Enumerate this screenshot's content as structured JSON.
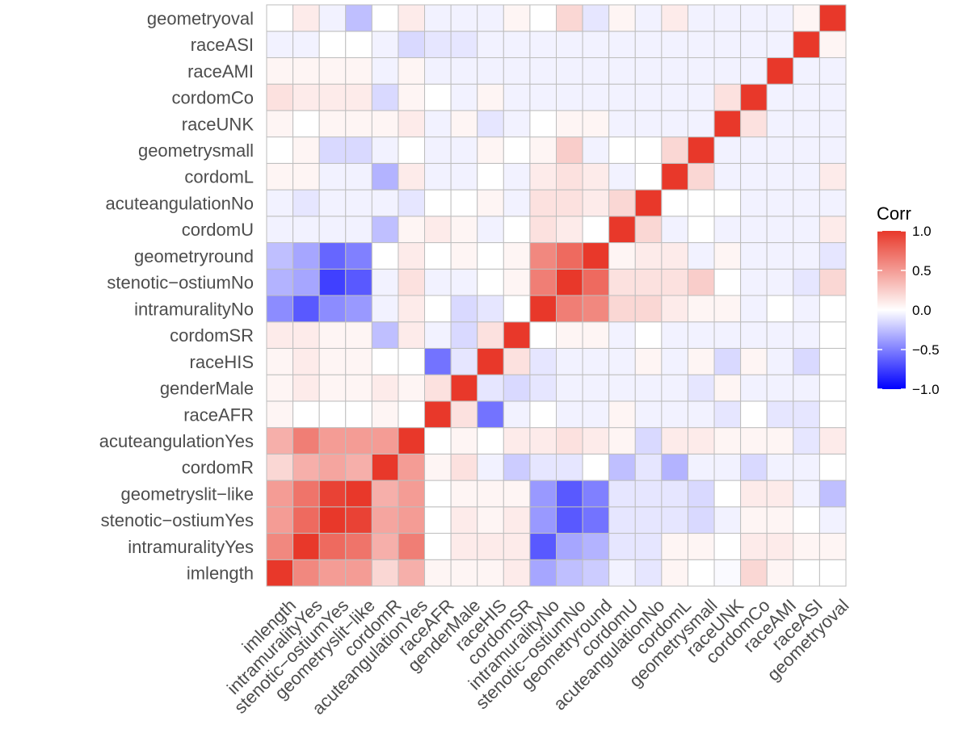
{
  "chart_data": {
    "type": "heatmap",
    "title": "",
    "xlabel": "",
    "ylabel": "",
    "variables": [
      "imlength",
      "intramuralityYes",
      "stenotic-ostiumYes",
      "geometryslit-like",
      "cordomR",
      "acuteangulationYes",
      "raceAFR",
      "genderMale",
      "raceHIS",
      "cordomSR",
      "intramuralityNo",
      "stenotic-ostiumNo",
      "geometryround",
      "cordomU",
      "acuteangulationNo",
      "cordomL",
      "geometrysmall",
      "raceUNK",
      "cordomCo",
      "raceAMI",
      "raceASI",
      "geometryoval"
    ],
    "x_tick_labels": [
      "imlength",
      "intramuralityYes",
      "stenotic−ostiumYes",
      "geometryslit−like",
      "cordomR",
      "acuteangulationYes",
      "raceAFR",
      "genderMale",
      "raceHIS",
      "cordomSR",
      "intramuralityNo",
      "stenotic−ostiumNo",
      "geometryround",
      "cordomU",
      "acuteangulationNo",
      "cordomL",
      "geometrysmall",
      "raceUNK",
      "cordomCo",
      "raceAMI",
      "raceASI",
      "geometryoval"
    ],
    "y_tick_labels": [
      "imlength",
      "intramuralityYes",
      "stenotic−ostiumYes",
      "geometryslit−like",
      "cordomR",
      "acuteangulationYes",
      "raceAFR",
      "genderMale",
      "raceHIS",
      "cordomSR",
      "intramuralityNo",
      "stenotic−ostiumNo",
      "geometryround",
      "cordomU",
      "acuteangulationNo",
      "cordomL",
      "geometrysmall",
      "raceUNK",
      "cordomCo",
      "raceAMI",
      "raceASI",
      "geometryoval"
    ],
    "matrix": [
      [
        1.0,
        0.6,
        0.5,
        0.5,
        0.2,
        0.4,
        0.05,
        0.05,
        0.05,
        0.1,
        -0.35,
        -0.25,
        -0.2,
        -0.05,
        -0.1,
        0.05,
        0.0,
        -0.02,
        0.2,
        0.05,
        0.0,
        0.0
      ],
      [
        0.6,
        1.0,
        0.75,
        0.7,
        0.4,
        0.65,
        0.0,
        0.1,
        0.1,
        0.1,
        -0.65,
        -0.35,
        -0.3,
        -0.1,
        -0.1,
        0.05,
        0.05,
        0.0,
        0.1,
        0.1,
        0.05,
        0.05
      ],
      [
        0.5,
        0.75,
        1.0,
        0.95,
        0.45,
        0.5,
        0.0,
        0.1,
        0.05,
        0.1,
        -0.4,
        -0.65,
        -0.55,
        -0.1,
        -0.1,
        -0.1,
        -0.15,
        -0.05,
        0.05,
        0.05,
        0.0,
        -0.05
      ],
      [
        0.5,
        0.7,
        0.95,
        1.0,
        0.4,
        0.5,
        0.0,
        0.05,
        0.05,
        0.05,
        -0.4,
        -0.65,
        -0.5,
        -0.1,
        -0.1,
        -0.1,
        -0.15,
        0.0,
        0.1,
        0.1,
        -0.05,
        -0.25
      ],
      [
        0.2,
        0.4,
        0.45,
        0.4,
        1.0,
        0.5,
        0.05,
        0.15,
        -0.05,
        -0.2,
        -0.1,
        -0.1,
        0.0,
        -0.25,
        -0.1,
        -0.3,
        -0.05,
        -0.05,
        -0.15,
        -0.05,
        -0.05,
        0.0
      ],
      [
        0.4,
        0.65,
        0.5,
        0.5,
        0.5,
        1.0,
        0.0,
        0.05,
        0.0,
        0.1,
        0.1,
        0.15,
        0.1,
        0.05,
        -0.15,
        0.1,
        0.1,
        0.05,
        0.05,
        0.05,
        -0.1,
        0.1
      ],
      [
        0.05,
        0.0,
        0.0,
        0.0,
        0.05,
        0.0,
        1.0,
        0.15,
        -0.55,
        -0.05,
        0.0,
        -0.05,
        -0.05,
        0.05,
        -0.05,
        -0.05,
        -0.05,
        -0.1,
        0.0,
        -0.1,
        -0.1,
        0.0
      ],
      [
        0.05,
        0.1,
        0.05,
        0.05,
        0.1,
        0.05,
        0.15,
        1.0,
        -0.1,
        -0.15,
        -0.1,
        -0.05,
        -0.05,
        -0.05,
        -0.05,
        -0.05,
        -0.1,
        0.05,
        -0.05,
        -0.05,
        -0.05,
        0.0
      ],
      [
        0.05,
        0.1,
        0.05,
        0.05,
        0.0,
        0.0,
        -0.55,
        -0.1,
        1.0,
        0.15,
        -0.1,
        -0.05,
        -0.05,
        -0.05,
        0.05,
        -0.05,
        0.05,
        -0.15,
        0.05,
        -0.05,
        -0.15,
        0.0
      ],
      [
        0.1,
        0.1,
        0.05,
        0.05,
        -0.25,
        0.1,
        -0.05,
        -0.15,
        0.15,
        1.0,
        0.0,
        0.05,
        0.05,
        -0.05,
        0.0,
        -0.05,
        -0.05,
        -0.05,
        -0.05,
        -0.05,
        -0.05,
        0.0
      ],
      [
        -0.45,
        -0.65,
        -0.45,
        -0.4,
        -0.05,
        0.1,
        0.0,
        -0.15,
        -0.1,
        0.0,
        1.0,
        0.65,
        0.6,
        0.2,
        0.2,
        0.1,
        0.05,
        0.05,
        -0.05,
        0.0,
        -0.05,
        0.0
      ],
      [
        -0.3,
        -0.35,
        -0.75,
        -0.65,
        -0.05,
        0.15,
        -0.05,
        -0.05,
        0.0,
        0.05,
        0.65,
        1.0,
        0.75,
        0.15,
        0.15,
        0.15,
        0.25,
        0.0,
        -0.05,
        -0.05,
        -0.1,
        0.2
      ],
      [
        -0.25,
        -0.35,
        -0.6,
        -0.5,
        0.0,
        0.1,
        0.0,
        0.05,
        0.0,
        0.05,
        0.6,
        0.75,
        1.0,
        0.05,
        0.1,
        0.1,
        -0.05,
        0.05,
        -0.05,
        -0.05,
        -0.05,
        -0.1
      ],
      [
        -0.05,
        -0.05,
        -0.05,
        -0.05,
        -0.25,
        0.05,
        0.1,
        0.05,
        -0.05,
        0.0,
        0.15,
        0.1,
        0.0,
        1.0,
        0.2,
        -0.05,
        0.0,
        -0.05,
        -0.05,
        -0.05,
        -0.05,
        0.1
      ],
      [
        -0.05,
        -0.1,
        -0.05,
        -0.05,
        -0.05,
        -0.1,
        0.0,
        0.0,
        0.05,
        -0.05,
        0.15,
        0.15,
        0.1,
        0.2,
        1.0,
        0.0,
        0.0,
        0.0,
        -0.05,
        -0.05,
        -0.05,
        -0.05
      ],
      [
        0.05,
        0.05,
        -0.05,
        -0.05,
        -0.3,
        0.1,
        -0.05,
        -0.05,
        0.0,
        -0.05,
        0.1,
        0.15,
        0.1,
        -0.05,
        0.0,
        1.0,
        0.2,
        -0.05,
        -0.05,
        -0.05,
        -0.05,
        0.1
      ],
      [
        0.0,
        0.05,
        -0.15,
        -0.15,
        -0.05,
        0.0,
        -0.05,
        -0.05,
        0.05,
        0.0,
        0.05,
        0.25,
        -0.05,
        0.0,
        0.0,
        0.2,
        1.0,
        -0.05,
        -0.05,
        -0.05,
        -0.05,
        -0.05
      ],
      [
        0.05,
        0.0,
        0.05,
        0.05,
        0.05,
        0.1,
        -0.05,
        0.05,
        -0.1,
        -0.05,
        0.0,
        0.05,
        0.05,
        -0.05,
        -0.05,
        -0.05,
        -0.05,
        1.0,
        0.15,
        -0.05,
        -0.05,
        -0.05
      ],
      [
        0.15,
        0.1,
        0.1,
        0.1,
        -0.15,
        0.05,
        0.0,
        -0.05,
        0.05,
        -0.05,
        -0.05,
        -0.05,
        -0.05,
        -0.05,
        -0.05,
        -0.05,
        -0.05,
        0.15,
        1.0,
        -0.05,
        -0.05,
        -0.05
      ],
      [
        0.05,
        0.05,
        0.05,
        0.05,
        -0.05,
        0.05,
        -0.05,
        -0.05,
        -0.05,
        -0.05,
        -0.05,
        -0.05,
        -0.05,
        -0.05,
        -0.05,
        -0.05,
        -0.05,
        -0.05,
        -0.05,
        1.0,
        -0.05,
        -0.05
      ],
      [
        -0.05,
        -0.05,
        0.0,
        0.0,
        -0.05,
        -0.15,
        -0.1,
        -0.1,
        -0.05,
        -0.05,
        -0.05,
        -0.05,
        -0.05,
        -0.05,
        -0.05,
        -0.05,
        -0.05,
        -0.05,
        -0.05,
        -0.05,
        1.0,
        0.05
      ],
      [
        0.0,
        0.1,
        -0.05,
        -0.25,
        0.0,
        0.1,
        -0.05,
        -0.05,
        -0.05,
        0.05,
        0.0,
        0.2,
        -0.1,
        0.05,
        -0.05,
        0.1,
        -0.05,
        -0.05,
        -0.05,
        -0.05,
        0.05,
        1.0
      ]
    ],
    "color_scale": {
      "low": "#0000FF",
      "mid": "#FFFFFF",
      "high": "#E8382A",
      "limits": [
        -1.0,
        1.0
      ]
    },
    "legend": {
      "title": "Corr",
      "ticks": [
        "1.0",
        "0.5",
        "0.0",
        "−0.5",
        "−1.0"
      ],
      "tick_values": [
        1.0,
        0.5,
        0.0,
        -0.5,
        -1.0
      ],
      "placement": "right"
    },
    "grid_line_color": "#BEBEBE",
    "axis_text_color": "#4D4D4D"
  }
}
